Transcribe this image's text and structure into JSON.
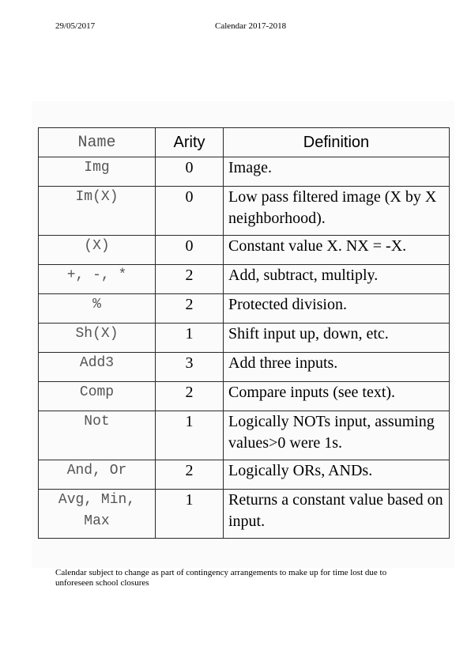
{
  "header": {
    "date": "29/05/2017",
    "title": "Calendar 2017-2018"
  },
  "table": {
    "headers": [
      "Name",
      "Arity",
      "Definition"
    ],
    "rows": [
      {
        "name": "Img",
        "arity": "0",
        "definition": "Image."
      },
      {
        "name": "Im(X)",
        "arity": "0",
        "definition": "Low pass filtered image (X by X neighborhood)."
      },
      {
        "name": "(X)",
        "arity": "0",
        "definition": "Constant value X. NX = -X."
      },
      {
        "name": "+, -, *",
        "arity": "2",
        "definition": "Add, subtract, multiply."
      },
      {
        "name": "%",
        "arity": "2",
        "definition": "Protected division."
      },
      {
        "name": "Sh(X)",
        "arity": "1",
        "definition": "Shift input up, down, etc."
      },
      {
        "name": "Add3",
        "arity": "3",
        "definition": "Add three inputs."
      },
      {
        "name": "Comp",
        "arity": "2",
        "definition": "Compare inputs (see text)."
      },
      {
        "name": "Not",
        "arity": "1",
        "definition": "Logically NOTs input, assuming values>0 were 1s."
      },
      {
        "name": "And, Or",
        "arity": "2",
        "definition": "Logically ORs, ANDs."
      },
      {
        "name": "Avg, Min, Max",
        "arity": "1",
        "definition": "Returns a constant value based on input."
      }
    ]
  },
  "footer": {
    "note": "Calendar subject to change as part of contingency arrangements to make up for time lost due to unforeseen school closures"
  }
}
